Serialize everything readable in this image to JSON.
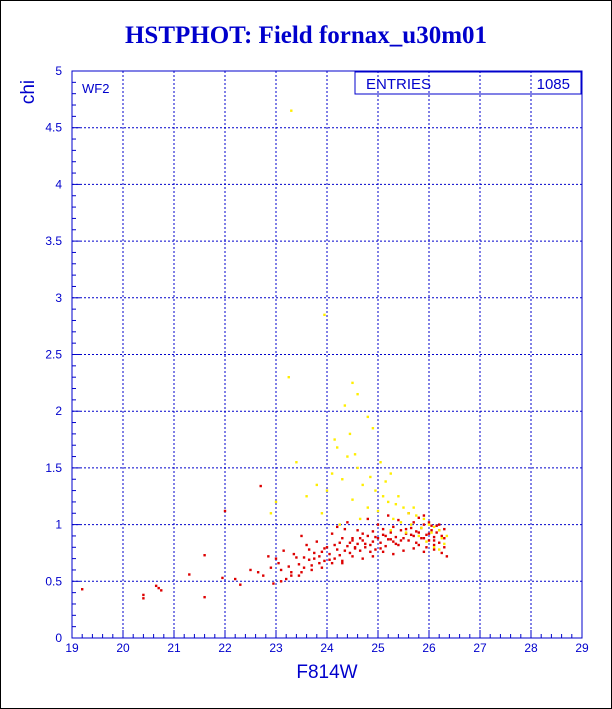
{
  "chart_data": {
    "type": "scatter",
    "title": "HSTPHOT: Field fornax_u30m01",
    "xlabel": "F814W",
    "ylabel": "chi",
    "xlim": [
      19,
      29
    ],
    "ylim": [
      0,
      5
    ],
    "x_ticks": [
      19,
      20,
      21,
      22,
      23,
      24,
      25,
      26,
      27,
      28,
      29
    ],
    "y_ticks": [
      0,
      0.5,
      1,
      1.5,
      2,
      2.5,
      3,
      3.5,
      4,
      4.5,
      5
    ],
    "grid": true,
    "panel_label": "WF2",
    "stats_box": {
      "label": "ENTRIES",
      "value": "1085"
    },
    "colors": {
      "frame": "#0000cc",
      "title": "#0000cc",
      "primary": "#dd0000",
      "secondary": "#ffee00"
    },
    "series": [
      {
        "color": "#dd0000",
        "points": [
          [
            19.2,
            0.43
          ],
          [
            20.4,
            0.38
          ],
          [
            20.4,
            0.35
          ],
          [
            20.65,
            0.46
          ],
          [
            20.7,
            0.44
          ],
          [
            20.75,
            0.42
          ],
          [
            21.3,
            0.56
          ],
          [
            21.6,
            0.36
          ],
          [
            21.6,
            0.73
          ],
          [
            21.95,
            0.53
          ],
          [
            22.0,
            1.12
          ],
          [
            22.2,
            0.52
          ],
          [
            22.65,
            0.58
          ],
          [
            22.7,
            1.34
          ],
          [
            22.75,
            0.55
          ],
          [
            22.85,
            0.72
          ],
          [
            22.9,
            0.62
          ],
          [
            22.95,
            0.48
          ],
          [
            23.0,
            0.7
          ],
          [
            23.05,
            0.66
          ],
          [
            23.1,
            0.6
          ],
          [
            23.15,
            0.77
          ],
          [
            23.2,
            0.52
          ],
          [
            23.25,
            0.63
          ],
          [
            23.3,
            0.58
          ],
          [
            23.35,
            0.74
          ],
          [
            23.4,
            0.71
          ],
          [
            23.45,
            0.55
          ],
          [
            23.5,
            0.9
          ],
          [
            23.55,
            0.62
          ],
          [
            23.6,
            0.82
          ],
          [
            23.65,
            0.78
          ],
          [
            23.7,
            0.64
          ],
          [
            23.75,
            0.7
          ],
          [
            23.8,
            0.85
          ],
          [
            23.85,
            0.72
          ],
          [
            23.9,
            0.76
          ],
          [
            23.95,
            0.68
          ],
          [
            24.0,
            0.8
          ],
          [
            24.05,
            0.74
          ],
          [
            24.1,
            0.92
          ],
          [
            24.15,
            0.7
          ],
          [
            24.2,
            0.78
          ],
          [
            24.25,
            0.84
          ],
          [
            24.3,
            0.66
          ],
          [
            24.35,
            0.96
          ],
          [
            24.4,
            0.81
          ],
          [
            24.45,
            0.75
          ],
          [
            24.5,
            0.88
          ],
          [
            24.55,
            0.79
          ],
          [
            24.6,
            0.83
          ],
          [
            24.65,
            0.77
          ],
          [
            24.7,
            0.86
          ],
          [
            24.75,
            0.8
          ],
          [
            24.8,
            0.9
          ],
          [
            24.85,
            0.82
          ],
          [
            24.9,
            0.85
          ],
          [
            24.95,
            0.78
          ],
          [
            25.0,
            0.88
          ],
          [
            25.05,
            0.84
          ],
          [
            25.1,
            0.91
          ],
          [
            25.15,
            0.81
          ],
          [
            25.2,
            0.87
          ],
          [
            25.25,
            0.93
          ],
          [
            25.3,
            0.85
          ],
          [
            25.35,
            0.89
          ],
          [
            25.4,
            0.82
          ],
          [
            25.45,
            0.95
          ],
          [
            25.5,
            0.88
          ],
          [
            25.55,
            0.92
          ],
          [
            25.6,
            0.86
          ],
          [
            25.65,
            0.97
          ],
          [
            25.7,
            0.9
          ],
          [
            25.75,
            0.84
          ],
          [
            25.8,
            0.93
          ],
          [
            25.85,
            0.88
          ],
          [
            25.9,
            1.0
          ],
          [
            25.95,
            0.91
          ],
          [
            26.0,
            0.86
          ],
          [
            26.05,
            0.95
          ],
          [
            26.1,
            0.89
          ],
          [
            26.15,
            0.93
          ],
          [
            26.2,
            0.84
          ],
          [
            26.25,
            0.9
          ],
          [
            26.3,
            0.96
          ],
          [
            26.3,
            0.8
          ],
          [
            26.25,
            0.75
          ],
          [
            26.1,
            0.78
          ],
          [
            25.9,
            0.76
          ],
          [
            25.7,
            0.79
          ],
          [
            25.5,
            0.77
          ],
          [
            25.3,
            0.74
          ],
          [
            25.1,
            0.76
          ],
          [
            24.9,
            0.72
          ],
          [
            24.7,
            0.7
          ],
          [
            24.5,
            0.72
          ],
          [
            24.3,
            0.68
          ],
          [
            24.1,
            0.66
          ],
          [
            23.9,
            0.62
          ],
          [
            23.7,
            0.6
          ],
          [
            23.5,
            0.58
          ],
          [
            23.3,
            0.55
          ],
          [
            23.1,
            0.5
          ],
          [
            24.2,
            0.98
          ],
          [
            24.4,
            1.02
          ],
          [
            24.6,
            0.95
          ],
          [
            24.8,
            1.05
          ],
          [
            25.0,
            1.0
          ],
          [
            25.2,
            1.08
          ],
          [
            25.4,
            1.04
          ],
          [
            25.6,
            1.1
          ],
          [
            25.8,
            1.06
          ],
          [
            26.0,
            1.02
          ],
          [
            26.2,
            1.0
          ],
          [
            25.9,
            1.08
          ],
          [
            25.7,
            1.02
          ],
          [
            25.3,
            0.98
          ],
          [
            25.1,
            0.96
          ],
          [
            24.9,
            0.94
          ],
          [
            24.7,
            0.92
          ],
          [
            24.5,
            0.86
          ],
          [
            24.3,
            0.88
          ],
          [
            26.1,
            0.82
          ],
          [
            25.95,
            0.8
          ],
          [
            25.85,
            0.97
          ],
          [
            26.05,
            0.99
          ],
          [
            25.75,
            0.94
          ],
          [
            25.65,
            0.91
          ],
          [
            25.55,
            0.96
          ],
          [
            25.45,
            0.86
          ],
          [
            25.35,
            0.83
          ],
          [
            25.25,
            0.87
          ],
          [
            25.15,
            0.9
          ],
          [
            25.05,
            0.79
          ],
          [
            24.95,
            0.89
          ],
          [
            24.85,
            0.76
          ],
          [
            24.75,
            0.83
          ],
          [
            24.65,
            0.88
          ],
          [
            24.55,
            0.8
          ],
          [
            24.45,
            0.84
          ],
          [
            24.35,
            0.77
          ],
          [
            24.25,
            0.73
          ],
          [
            24.15,
            0.82
          ],
          [
            24.05,
            0.69
          ],
          [
            23.95,
            0.79
          ],
          [
            23.85,
            0.66
          ],
          [
            23.75,
            0.75
          ],
          [
            23.65,
            0.69
          ],
          [
            23.55,
            0.71
          ],
          [
            23.45,
            0.65
          ],
          [
            22.5,
            0.6
          ],
          [
            22.3,
            0.47
          ],
          [
            26.35,
            0.72
          ],
          [
            26.3,
            0.88
          ],
          [
            26.2,
            0.95
          ],
          [
            26.15,
            0.99
          ],
          [
            26.1,
            0.86
          ],
          [
            26.0,
            0.92
          ],
          [
            25.9,
            0.88
          ],
          [
            25.8,
            0.82
          ]
        ]
      },
      {
        "color": "#ffee00",
        "points": [
          [
            23.3,
            4.65
          ],
          [
            23.95,
            2.85
          ],
          [
            23.25,
            2.3
          ],
          [
            24.5,
            2.25
          ],
          [
            24.6,
            2.15
          ],
          [
            24.35,
            2.05
          ],
          [
            24.8,
            1.95
          ],
          [
            24.9,
            1.85
          ],
          [
            24.15,
            1.75
          ],
          [
            24.4,
            1.6
          ],
          [
            23.4,
            1.55
          ],
          [
            24.6,
            1.5
          ],
          [
            24.7,
            1.35
          ],
          [
            24.95,
            1.3
          ],
          [
            25.1,
            1.25
          ],
          [
            25.2,
            1.2
          ],
          [
            25.35,
            1.18
          ],
          [
            25.5,
            1.15
          ],
          [
            25.6,
            1.1
          ],
          [
            25.75,
            1.08
          ],
          [
            25.9,
            1.05
          ],
          [
            26.0,
            1.0
          ],
          [
            26.1,
            0.98
          ],
          [
            26.2,
            0.95
          ],
          [
            24.1,
            1.45
          ],
          [
            24.3,
            1.4
          ],
          [
            23.8,
            1.35
          ],
          [
            24.0,
            1.3
          ],
          [
            24.5,
            1.22
          ],
          [
            24.8,
            1.15
          ],
          [
            25.0,
            1.12
          ],
          [
            25.3,
            1.05
          ],
          [
            25.45,
            1.02
          ],
          [
            25.65,
            1.0
          ],
          [
            25.85,
            0.97
          ],
          [
            26.05,
            0.93
          ],
          [
            26.25,
            0.88
          ],
          [
            26.3,
            0.83
          ],
          [
            26.2,
            0.78
          ],
          [
            26.1,
            0.8
          ],
          [
            25.95,
            0.85
          ],
          [
            25.8,
            0.9
          ],
          [
            25.55,
            0.93
          ],
          [
            25.25,
            0.95
          ],
          [
            24.65,
            1.05
          ],
          [
            23.6,
            1.25
          ],
          [
            23.9,
            1.1
          ],
          [
            24.25,
            1.0
          ],
          [
            22.9,
            1.1
          ],
          [
            23.0,
            1.2
          ],
          [
            26.35,
            0.9
          ],
          [
            25.7,
            1.15
          ],
          [
            25.4,
            1.25
          ],
          [
            25.15,
            1.38
          ],
          [
            24.85,
            1.42
          ],
          [
            24.55,
            1.62
          ],
          [
            24.2,
            1.68
          ],
          [
            24.45,
            1.8
          ],
          [
            25.05,
            1.55
          ],
          [
            25.25,
            1.45
          ]
        ]
      }
    ]
  }
}
